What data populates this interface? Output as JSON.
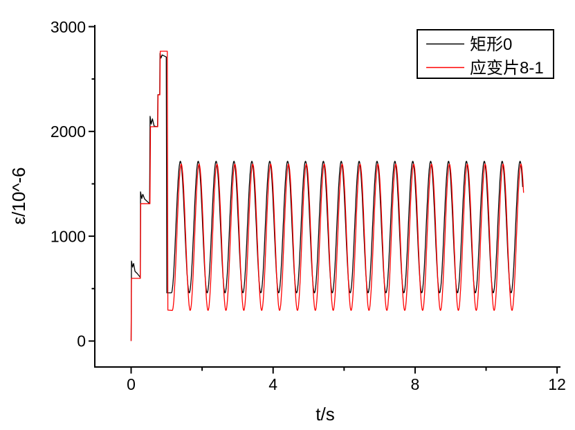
{
  "figure": {
    "background_color": "#ffffff",
    "axis_color": "#000000"
  },
  "chart_data": {
    "type": "line",
    "title": "",
    "xlabel": "t/s",
    "ylabel": "ε/10^-6",
    "xlim": [
      -1.02,
      12.1
    ],
    "ylim": [
      -250,
      3000
    ],
    "grid": false,
    "x_ticks": [
      "0",
      "4",
      "8",
      "12"
    ],
    "x_tick_values": [
      0,
      4,
      8,
      12
    ],
    "x_minor_tick_values": [
      2,
      6,
      10
    ],
    "y_ticks": [
      "0",
      "1000",
      "2000",
      "3000"
    ],
    "y_tick_values": [
      0,
      1000,
      2000,
      3000
    ],
    "y_minor_tick_values": [
      500,
      1500,
      2500
    ],
    "legend": {
      "position": "top-right",
      "border_color": "#000000",
      "entries": [
        {
          "label": "矩形0",
          "color": "#000000"
        },
        {
          "label": "应变片8-1",
          "color": "#ff0000"
        }
      ]
    },
    "series": [
      {
        "name": "矩形0",
        "color": "#000000",
        "description": "measured strain with overshoot ringing at each step, then steady sine oscillation",
        "transient_points": [
          [
            0,
            0
          ],
          [
            0.01,
            763
          ],
          [
            0.04,
            705
          ],
          [
            0.07,
            740
          ],
          [
            0.11,
            665
          ],
          [
            0.17,
            645
          ],
          [
            0.25,
            612
          ],
          [
            0.26,
            600
          ],
          [
            0.265,
            1424
          ],
          [
            0.3,
            1360
          ],
          [
            0.33,
            1400
          ],
          [
            0.38,
            1355
          ],
          [
            0.52,
            1310
          ],
          [
            0.535,
            2144
          ],
          [
            0.565,
            2070
          ],
          [
            0.6,
            2120
          ],
          [
            0.65,
            2050
          ],
          [
            0.745,
            2045
          ],
          [
            0.755,
            2350
          ],
          [
            0.805,
            2350
          ],
          [
            0.815,
            2745
          ],
          [
            0.84,
            2700
          ],
          [
            0.875,
            2730
          ],
          [
            0.99,
            2710
          ],
          [
            1.005,
            460
          ]
        ],
        "oscillation": {
          "waveform": "sine",
          "first_trough_t": 1.135,
          "t_end": 11.04,
          "period": 0.5037,
          "min": 460,
          "max": 1715
        }
      },
      {
        "name": "应变片8-1",
        "color": "#ff0000",
        "description": "clean rectangular staircase command then steady sine oscillation with deeper troughs",
        "transient_points": [
          [
            0,
            0
          ],
          [
            0.01,
            598
          ],
          [
            0.26,
            598
          ],
          [
            0.27,
            1310
          ],
          [
            0.53,
            1310
          ],
          [
            0.545,
            2045
          ],
          [
            0.75,
            2045
          ],
          [
            0.76,
            2349
          ],
          [
            0.81,
            2349
          ],
          [
            0.82,
            2765
          ],
          [
            1.02,
            2765
          ],
          [
            1.035,
            295
          ]
        ],
        "oscillation": {
          "waveform": "sine",
          "first_trough_t": 1.16,
          "t_end": 11.06,
          "period": 0.5037,
          "min": 292,
          "max": 1688
        }
      }
    ]
  }
}
